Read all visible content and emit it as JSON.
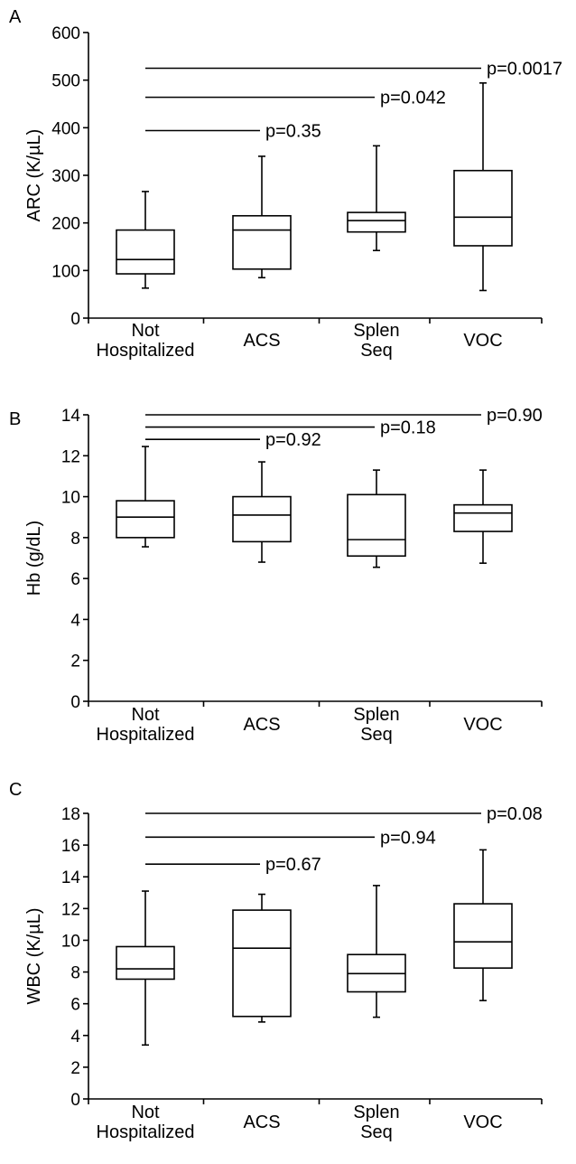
{
  "chart_data": [
    {
      "type": "box",
      "panel": "A",
      "ylabel": "ARC (K/µL)",
      "ylim": [
        0,
        600
      ],
      "yticks": [
        0,
        100,
        200,
        300,
        400,
        500,
        600
      ],
      "categories": [
        [
          "Not",
          "Hospitalized"
        ],
        [
          "ACS"
        ],
        [
          "Splen",
          "Seq"
        ],
        [
          "VOC"
        ]
      ],
      "boxes": [
        {
          "min": 63,
          "q1": 93,
          "median": 123,
          "q3": 185,
          "max": 266
        },
        {
          "min": 85,
          "q1": 103,
          "median": 185,
          "q3": 215,
          "max": 340
        },
        {
          "min": 142,
          "q1": 181,
          "median": 205,
          "q3": 222,
          "max": 362
        },
        {
          "min": 58,
          "q1": 152,
          "median": 212,
          "q3": 310,
          "max": 494
        }
      ],
      "comparisons": [
        {
          "from": 0,
          "to": 1,
          "y": 394,
          "label": "p=0.35"
        },
        {
          "from": 0,
          "to": 2,
          "y": 464,
          "label": "p=0.042"
        },
        {
          "from": 0,
          "to": 3,
          "y": 525,
          "label": "p=0.0017"
        }
      ]
    },
    {
      "type": "box",
      "panel": "B",
      "ylabel": "Hb (g/dL)",
      "ylim": [
        0,
        14
      ],
      "yticks": [
        0,
        2,
        4,
        6,
        8,
        10,
        12,
        14
      ],
      "categories": [
        [
          "Not",
          "Hospitalized"
        ],
        [
          "ACS"
        ],
        [
          "Splen",
          "Seq"
        ],
        [
          "VOC"
        ]
      ],
      "boxes": [
        {
          "min": 7.55,
          "q1": 8.0,
          "median": 9.0,
          "q3": 9.8,
          "max": 12.45
        },
        {
          "min": 6.8,
          "q1": 7.8,
          "median": 9.1,
          "q3": 10.0,
          "max": 11.7
        },
        {
          "min": 6.55,
          "q1": 7.1,
          "median": 7.9,
          "q3": 10.1,
          "max": 11.3
        },
        {
          "min": 6.75,
          "q1": 8.3,
          "median": 9.2,
          "q3": 9.6,
          "max": 11.3
        }
      ],
      "comparisons": [
        {
          "from": 0,
          "to": 1,
          "y": 12.8,
          "label": "p=0.92"
        },
        {
          "from": 0,
          "to": 2,
          "y": 13.4,
          "label": "p=0.18"
        },
        {
          "from": 0,
          "to": 3,
          "y": 14.0,
          "label": "p=0.90"
        }
      ]
    },
    {
      "type": "box",
      "panel": "C",
      "ylabel": "WBC (K/µL)",
      "ylim": [
        0,
        18
      ],
      "yticks": [
        0,
        2,
        4,
        6,
        8,
        10,
        12,
        14,
        16,
        18
      ],
      "categories": [
        [
          "Not",
          "Hospitalized"
        ],
        [
          "ACS"
        ],
        [
          "Splen",
          "Seq"
        ],
        [
          "VOC"
        ]
      ],
      "boxes": [
        {
          "min": 3.4,
          "q1": 7.55,
          "median": 8.2,
          "q3": 9.6,
          "max": 13.1
        },
        {
          "min": 4.85,
          "q1": 5.2,
          "median": 9.5,
          "q3": 11.9,
          "max": 12.9
        },
        {
          "min": 5.15,
          "q1": 6.75,
          "median": 7.9,
          "q3": 9.1,
          "max": 13.45
        },
        {
          "min": 6.2,
          "q1": 8.25,
          "median": 9.9,
          "q3": 12.3,
          "max": 15.7
        }
      ],
      "comparisons": [
        {
          "from": 0,
          "to": 1,
          "y": 14.8,
          "label": "p=0.67"
        },
        {
          "from": 0,
          "to": 2,
          "y": 16.5,
          "label": "p=0.94"
        },
        {
          "from": 0,
          "to": 3,
          "y": 18.0,
          "label": "p=0.08"
        }
      ]
    }
  ]
}
